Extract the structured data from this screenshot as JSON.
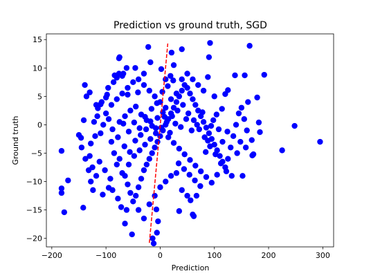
{
  "chart_data": {
    "type": "scatter",
    "title": "Prediction vs ground truth, SGD",
    "xlabel": "Prediction",
    "ylabel": "Ground truth",
    "xlim": [
      -210,
      320
    ],
    "ylim": [
      -21.5,
      16.0
    ],
    "xticks": [
      -200,
      -100,
      0,
      100,
      200,
      300
    ],
    "yticks": [
      -20,
      -15,
      -10,
      -5,
      0,
      5,
      10,
      15
    ],
    "grid": false,
    "legend": "none",
    "series": [
      {
        "marker": "circle",
        "color": "#0000ff",
        "points": [
          [
            -182,
            -4.6
          ],
          [
            -182,
            -11.2
          ],
          [
            -182,
            -12.0
          ],
          [
            -177,
            -15.4
          ],
          [
            -170,
            -9.8
          ],
          [
            -150,
            -1.8
          ],
          [
            -146,
            -2.3
          ],
          [
            -142,
            -14.6
          ],
          [
            -141,
            0.8
          ],
          [
            -139,
            7.0
          ],
          [
            -136,
            5.0
          ],
          [
            -130,
            5.7
          ],
          [
            -128,
            -3.3
          ],
          [
            -124,
            -11.5
          ],
          [
            -118,
            3.5
          ],
          [
            -115,
            2.9
          ],
          [
            -110,
            3.6
          ],
          [
            -106,
            -12.3
          ],
          [
            -100,
            4.8
          ],
          [
            -98,
            5.3
          ],
          [
            -95,
            -11.1
          ],
          [
            -84,
            8.7
          ],
          [
            -80,
            8.3
          ],
          [
            -76,
            11.7
          ],
          [
            -75,
            11.9
          ],
          [
            -70,
            8.6
          ],
          [
            -68,
            9.0
          ],
          [
            -65,
            -17.4
          ],
          [
            -62,
            10.0
          ],
          [
            -60,
            5.3
          ],
          [
            -52,
            -19.3
          ],
          [
            -46,
            10.0
          ],
          [
            -41,
            5.7
          ],
          [
            -30,
            9.0
          ],
          [
            -22,
            13.7
          ],
          [
            -18,
            11.0
          ],
          [
            -14,
            -20.0
          ],
          [
            -12,
            -20.9
          ],
          [
            -7,
            -14.9
          ],
          [
            -6,
            -19.0
          ],
          [
            -4,
            -17.0
          ],
          [
            2,
            9.8
          ],
          [
            10,
            8.0
          ],
          [
            19,
            8.6
          ],
          [
            21,
            12.7
          ],
          [
            25,
            10.5
          ],
          [
            35,
            -15.2
          ],
          [
            40,
            13.3
          ],
          [
            56,
            -13.3
          ],
          [
            60,
            -15.8
          ],
          [
            62,
            -16.1
          ],
          [
            67,
            -12.5
          ],
          [
            88,
            8.4
          ],
          [
            90,
            11.9
          ],
          [
            92,
            14.4
          ],
          [
            120,
            5.4
          ],
          [
            125,
            6.1
          ],
          [
            138,
            8.7
          ],
          [
            152,
            -9.0
          ],
          [
            156,
            8.7
          ],
          [
            165,
            13.9
          ],
          [
            169,
            -2.7
          ],
          [
            170,
            -5.4
          ],
          [
            179,
            4.8
          ],
          [
            182,
            0.4
          ],
          [
            184,
            -1.3
          ],
          [
            192,
            8.8
          ],
          [
            225,
            -4.5
          ],
          [
            248,
            -0.2
          ],
          [
            295,
            -3.0
          ],
          [
            -120,
            -2.0
          ],
          [
            -110,
            -1.5
          ],
          [
            -105,
            0.0
          ],
          [
            -95,
            1.0
          ],
          [
            -90,
            -3.0
          ],
          [
            -85,
            -5.0
          ],
          [
            -80,
            -7.0
          ],
          [
            -75,
            -6.0
          ],
          [
            -70,
            -8.5
          ],
          [
            -65,
            -9.0
          ],
          [
            -60,
            -10.5
          ],
          [
            -55,
            -12.0
          ],
          [
            -50,
            -13.5
          ],
          [
            -45,
            -12.5
          ],
          [
            -40,
            -11.0
          ],
          [
            -35,
            -9.5
          ],
          [
            -30,
            -8.0
          ],
          [
            -25,
            -7.0
          ],
          [
            -20,
            -6.0
          ],
          [
            -15,
            -5.0
          ],
          [
            -10,
            -4.0
          ],
          [
            -5,
            -3.0
          ],
          [
            0,
            -2.0
          ],
          [
            5,
            -1.0
          ],
          [
            10,
            0.0
          ],
          [
            15,
            1.0
          ],
          [
            20,
            2.0
          ],
          [
            25,
            3.0
          ],
          [
            30,
            4.0
          ],
          [
            35,
            5.0
          ],
          [
            40,
            6.0
          ],
          [
            45,
            7.0
          ],
          [
            50,
            6.5
          ],
          [
            55,
            5.5
          ],
          [
            60,
            4.5
          ],
          [
            65,
            3.5
          ],
          [
            70,
            2.5
          ],
          [
            75,
            1.5
          ],
          [
            80,
            0.5
          ],
          [
            85,
            -0.5
          ],
          [
            90,
            -1.5
          ],
          [
            95,
            -2.5
          ],
          [
            100,
            -3.5
          ],
          [
            105,
            -4.5
          ],
          [
            110,
            -5.5
          ],
          [
            115,
            -6.5
          ],
          [
            120,
            -7.5
          ],
          [
            125,
            -6.0
          ],
          [
            130,
            -4.0
          ],
          [
            135,
            -2.0
          ],
          [
            140,
            0.0
          ],
          [
            145,
            2.0
          ],
          [
            150,
            3.0
          ],
          [
            155,
            1.0
          ],
          [
            160,
            -1.0
          ],
          [
            -130,
            -5.5
          ],
          [
            -125,
            -7.5
          ],
          [
            -118,
            -9.0
          ],
          [
            -112,
            -6.5
          ],
          [
            -102,
            -8.0
          ],
          [
            -92,
            -9.5
          ],
          [
            -88,
            -11.5
          ],
          [
            -78,
            -13.0
          ],
          [
            -72,
            -14.5
          ],
          [
            -62,
            -15.0
          ],
          [
            -58,
            -7.0
          ],
          [
            -48,
            -5.5
          ],
          [
            -38,
            -4.5
          ],
          [
            -28,
            -3.5
          ],
          [
            -18,
            -2.5
          ],
          [
            -8,
            -1.5
          ],
          [
            2,
            -0.5
          ],
          [
            12,
            0.5
          ],
          [
            22,
            1.5
          ],
          [
            32,
            2.5
          ],
          [
            42,
            3.5
          ],
          [
            52,
            2.0
          ],
          [
            62,
            0.8
          ],
          [
            72,
            -0.8
          ],
          [
            82,
            -2.2
          ],
          [
            92,
            -3.8
          ],
          [
            102,
            -5.2
          ],
          [
            112,
            -6.8
          ],
          [
            122,
            -8.2
          ],
          [
            132,
            -9.0
          ],
          [
            -100,
            2.0
          ],
          [
            -90,
            3.5
          ],
          [
            -80,
            4.5
          ],
          [
            -70,
            5.5
          ],
          [
            -60,
            6.5
          ],
          [
            -50,
            7.5
          ],
          [
            -40,
            8.0
          ],
          [
            -30,
            7.0
          ],
          [
            -20,
            6.0
          ],
          [
            -10,
            5.0
          ],
          [
            0,
            4.0
          ],
          [
            10,
            3.0
          ],
          [
            20,
            4.5
          ],
          [
            30,
            5.5
          ],
          [
            40,
            8.0
          ],
          [
            50,
            9.0
          ],
          [
            60,
            8.0
          ],
          [
            70,
            7.0
          ],
          [
            80,
            6.0
          ],
          [
            100,
            5.0
          ],
          [
            -40,
            -15.0
          ],
          [
            -30,
            -16.5
          ],
          [
            -20,
            -14.0
          ],
          [
            -10,
            -12.5
          ],
          [
            0,
            -11.0
          ],
          [
            10,
            -10.0
          ],
          [
            20,
            -9.0
          ],
          [
            30,
            -8.5
          ],
          [
            40,
            -11.5
          ],
          [
            50,
            -12.5
          ],
          [
            -75,
            0.5
          ],
          [
            -65,
            1.5
          ],
          [
            -55,
            2.5
          ],
          [
            -45,
            3.2
          ],
          [
            -35,
            1.8
          ],
          [
            -25,
            0.8
          ],
          [
            -15,
            -0.2
          ],
          [
            -5,
            1.2
          ],
          [
            5,
            2.2
          ],
          [
            15,
            -2.2
          ],
          [
            25,
            -3.2
          ],
          [
            35,
            -4.2
          ],
          [
            45,
            -5.2
          ],
          [
            55,
            -6.2
          ],
          [
            65,
            -7.2
          ],
          [
            75,
            -8.2
          ],
          [
            85,
            -9.2
          ],
          [
            95,
            -10.2
          ],
          [
            105,
            -8.8
          ],
          [
            115,
            -3.0
          ],
          [
            -145,
            -4.0
          ],
          [
            -138,
            -6.0
          ],
          [
            -132,
            -8.0
          ],
          [
            -128,
            -10.0
          ],
          [
            -122,
            0.5
          ],
          [
            -116,
            1.5
          ],
          [
            -108,
            4.0
          ],
          [
            -96,
            6.5
          ],
          [
            -86,
            7.5
          ],
          [
            -76,
            9.0
          ],
          [
            -66,
            -3.8
          ],
          [
            -56,
            -4.8
          ],
          [
            -46,
            -2.8
          ],
          [
            -36,
            -1.8
          ],
          [
            -26,
            -0.8
          ],
          [
            -16,
            2.8
          ],
          [
            -6,
            3.8
          ],
          [
            4,
            5.8
          ],
          [
            14,
            6.8
          ],
          [
            24,
            7.8
          ],
          [
            34,
            -6.8
          ],
          [
            44,
            -7.8
          ],
          [
            54,
            -8.8
          ],
          [
            64,
            -9.8
          ],
          [
            74,
            -10.8
          ],
          [
            84,
            -4.8
          ],
          [
            94,
            -0.2
          ],
          [
            104,
            1.8
          ],
          [
            114,
            2.8
          ],
          [
            124,
            -1.2
          ],
          [
            142,
            -5.0
          ],
          [
            148,
            -3.0
          ],
          [
            158,
            -4.0
          ],
          [
            162,
            4.0
          ],
          [
            172,
            -5.2
          ],
          [
            -88,
            -0.8
          ],
          [
            -78,
            -2.2
          ],
          [
            -68,
            0.2
          ],
          [
            -58,
            -1.2
          ],
          [
            -48,
            0.4
          ],
          [
            -38,
            -0.6
          ],
          [
            -28,
            1.4
          ],
          [
            -18,
            0.6
          ],
          [
            -8,
            -0.6
          ],
          [
            8,
            1.4
          ],
          [
            18,
            -1.4
          ],
          [
            28,
            0.2
          ],
          [
            38,
            -0.4
          ],
          [
            48,
            1.0
          ],
          [
            58,
            -1.0
          ],
          [
            68,
            0.0
          ],
          [
            78,
            2.2
          ],
          [
            88,
            -2.8
          ],
          [
            98,
            0.8
          ],
          [
            108,
            -0.8
          ]
        ]
      }
    ],
    "reference_line": {
      "style": "dashed",
      "color": "#ff0000",
      "points": [
        [
          -20,
          -20.8
        ],
        [
          14,
          14.3
        ]
      ]
    }
  }
}
